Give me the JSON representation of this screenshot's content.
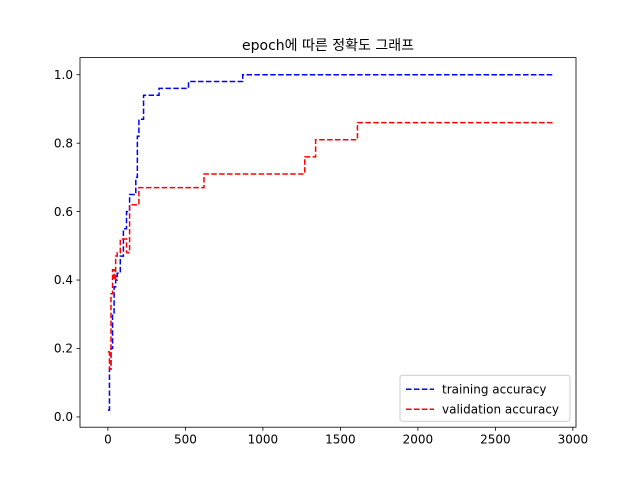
{
  "chart_data": {
    "type": "line",
    "title": "epoch에 따른 정확도 그래프",
    "xlabel": "",
    "ylabel": "",
    "xlim": [
      -180,
      3020
    ],
    "ylim": [
      -0.03,
      1.05
    ],
    "xticks": [
      0,
      500,
      1000,
      1500,
      2000,
      2500,
      3000
    ],
    "yticks": [
      0.0,
      0.2,
      0.4,
      0.6,
      0.8,
      1.0
    ],
    "xtick_labels": [
      "0",
      "500",
      "1000",
      "1500",
      "2000",
      "2500",
      "3000"
    ],
    "ytick_labels": [
      "0.0",
      "0.2",
      "0.4",
      "0.6",
      "0.8",
      "1.0"
    ],
    "grid": false,
    "legend_position": "lower-right",
    "series": [
      {
        "name": "training accuracy",
        "color": "#0000ff",
        "linestyle": "dashed",
        "x": [
          0,
          10,
          20,
          30,
          40,
          50,
          60,
          70,
          80,
          100,
          120,
          140,
          160,
          180,
          190,
          200,
          230,
          300,
          330,
          500,
          520,
          850,
          870,
          1000,
          2880
        ],
        "y": [
          0.02,
          0.14,
          0.2,
          0.3,
          0.38,
          0.4,
          0.42,
          0.42,
          0.47,
          0.55,
          0.6,
          0.65,
          0.65,
          0.7,
          0.82,
          0.87,
          0.94,
          0.94,
          0.96,
          0.96,
          0.98,
          0.98,
          1.0,
          1.0,
          1.0
        ]
      },
      {
        "name": "validation accuracy",
        "color": "#ff0000",
        "linestyle": "dashed",
        "x": [
          0,
          10,
          20,
          30,
          40,
          50,
          60,
          80,
          100,
          120,
          140,
          180,
          200,
          600,
          620,
          1250,
          1270,
          1320,
          1340,
          1590,
          1610,
          2880
        ],
        "y": [
          0.19,
          0.14,
          0.36,
          0.43,
          0.4,
          0.47,
          0.48,
          0.52,
          0.52,
          0.48,
          0.62,
          0.62,
          0.67,
          0.67,
          0.71,
          0.71,
          0.76,
          0.76,
          0.81,
          0.81,
          0.86,
          0.86
        ]
      }
    ]
  }
}
